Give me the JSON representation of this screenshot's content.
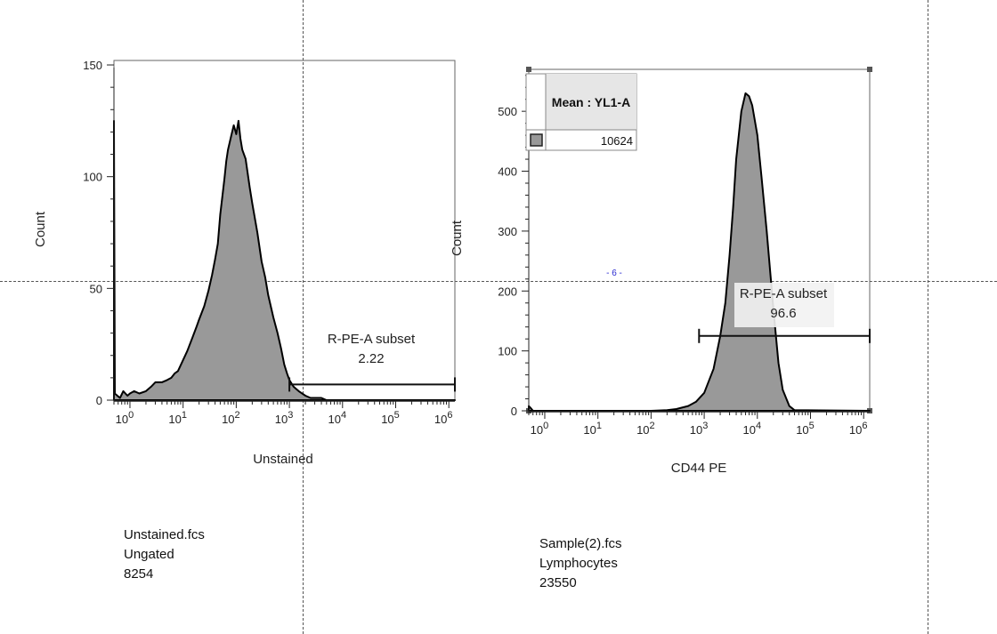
{
  "chart_data": [
    {
      "type": "area",
      "x_label": "Unstained",
      "y_label": "Count",
      "x_scale": "log",
      "xlim": [
        0.5,
        1300000
      ],
      "ylim": [
        0,
        152
      ],
      "y_ticks": [
        0,
        50,
        100,
        150
      ],
      "x_ticks": [
        1,
        10,
        100,
        1000,
        10000,
        100000,
        1000000
      ],
      "histogram": {
        "x": [
          0.5,
          0.52,
          0.58,
          0.65,
          0.75,
          0.9,
          1,
          1.2,
          1.5,
          2,
          2.5,
          3,
          4,
          5,
          6,
          7,
          8,
          10,
          12,
          15,
          18,
          20,
          25,
          30,
          35,
          40,
          45,
          50,
          60,
          65,
          70,
          80,
          90,
          100,
          110,
          120,
          130,
          150,
          180,
          200,
          250,
          300,
          350,
          400,
          500,
          600,
          700,
          800,
          900,
          1000,
          1200,
          1500,
          2000,
          2500,
          3000,
          4000,
          5000,
          1300000
        ],
        "y": [
          125,
          3,
          2,
          1,
          4,
          2,
          3,
          4,
          3,
          4,
          6,
          8,
          8,
          9,
          10,
          12,
          13,
          18,
          22,
          28,
          33,
          36,
          42,
          49,
          56,
          63,
          70,
          83,
          99,
          107,
          112,
          118,
          123,
          119,
          125,
          117,
          112,
          108,
          95,
          88,
          75,
          62,
          55,
          47,
          37,
          30,
          23,
          16,
          12,
          9,
          6,
          4,
          2,
          1,
          1,
          1,
          0,
          0
        ]
      },
      "gate": {
        "label": "R-PE-A subset",
        "value": "2.22",
        "x_start": 1000,
        "x_end": 1300000,
        "y": 7
      },
      "sample": {
        "file": "Unstained.fcs",
        "population": "Ungated",
        "count": "8254"
      }
    },
    {
      "type": "area",
      "x_label": "CD44 PE",
      "y_label": "Count",
      "x_scale": "log",
      "xlim": [
        0.5,
        1300000
      ],
      "ylim": [
        0,
        570
      ],
      "y_ticks": [
        0,
        100,
        200,
        300,
        400,
        500
      ],
      "x_ticks": [
        1,
        10,
        100,
        1000,
        10000,
        100000,
        1000000
      ],
      "histogram": {
        "x": [
          0.5,
          0.55,
          0.6,
          1,
          10,
          100,
          200,
          300,
          500,
          700,
          1000,
          1500,
          2000,
          2500,
          3000,
          3500,
          4000,
          5000,
          6000,
          7000,
          8000,
          10000,
          12000,
          15000,
          20000,
          25000,
          30000,
          40000,
          50000,
          1300000
        ],
        "y": [
          8,
          4,
          0,
          0,
          0,
          0,
          1,
          3,
          8,
          15,
          30,
          70,
          125,
          180,
          260,
          340,
          420,
          500,
          530,
          525,
          510,
          460,
          390,
          300,
          170,
          80,
          35,
          8,
          1,
          0
        ],
        "tail": [
          8,
          4,
          0
        ]
      },
      "gate": {
        "label": "R-PE-A subset",
        "value": "96.6",
        "x_start": 800,
        "x_end": 1300000,
        "y": 125
      },
      "stat_table": {
        "header": "Mean : YL1-A",
        "value": "10624",
        "swatch_color": "#999999"
      },
      "marker": "- 6 -",
      "sample": {
        "file": "Sample(2).fcs",
        "population": "Lymphocytes",
        "count": "23550"
      }
    }
  ]
}
